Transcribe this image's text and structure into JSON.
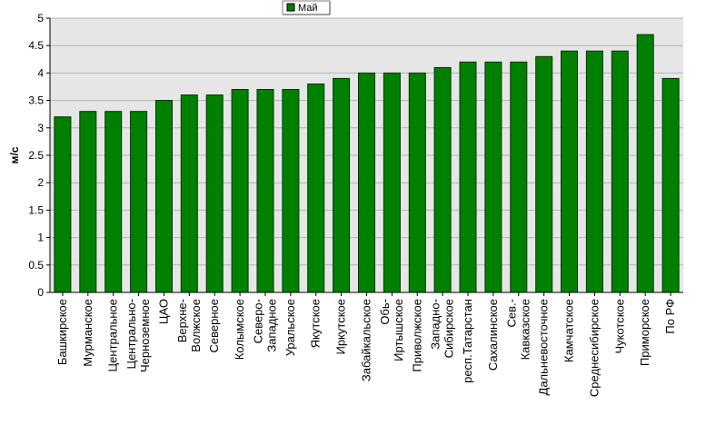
{
  "chart_data": {
    "type": "bar",
    "ylabel": "м/с",
    "ylim": [
      0,
      5
    ],
    "yticks": [
      "0",
      "0.5",
      "1",
      "1.5",
      "2",
      "2.5",
      "3",
      "3.5",
      "4",
      "4.5",
      "5"
    ],
    "grid": true,
    "legend_position": "top-center",
    "series": [
      {
        "name": "Май",
        "color": "#008000",
        "values": [
          3.2,
          3.3,
          3.3,
          3.3,
          3.5,
          3.6,
          3.6,
          3.7,
          3.7,
          3.7,
          3.8,
          3.9,
          4.0,
          4.0,
          4.0,
          4.1,
          4.2,
          4.2,
          4.2,
          4.3,
          4.4,
          4.4,
          4.4,
          4.7,
          3.9
        ]
      }
    ],
    "categories": [
      [
        "Башкирское"
      ],
      [
        "Мурманское"
      ],
      [
        "Центральное"
      ],
      [
        "Центрально-",
        "Черноземное"
      ],
      [
        "ЦАО"
      ],
      [
        "Верхне-",
        "Волжское"
      ],
      [
        "Северное"
      ],
      [
        "Колымское"
      ],
      [
        "Северо-",
        "Западное"
      ],
      [
        "Уральское"
      ],
      [
        "Якутское"
      ],
      [
        "Иркутское"
      ],
      [
        "Забайкальское"
      ],
      [
        "Обь-",
        "Иртышское"
      ],
      [
        "Приволжское"
      ],
      [
        "Западно-",
        "Сибирское"
      ],
      [
        "респ.Татарстан"
      ],
      [
        "Сахалинское"
      ],
      [
        "Сев.-",
        "Кавказское"
      ],
      [
        "Дальневосточное"
      ],
      [
        "Камчатское"
      ],
      [
        "Среднесибирское"
      ],
      [
        "Чукотское"
      ],
      [
        "Приморское"
      ],
      [
        "По РФ"
      ]
    ]
  },
  "colors": {
    "plot_background": "#e6e6e6",
    "grid": "#b4b4b4",
    "bar_fill": "#008000",
    "bar_stroke": "#003300"
  }
}
